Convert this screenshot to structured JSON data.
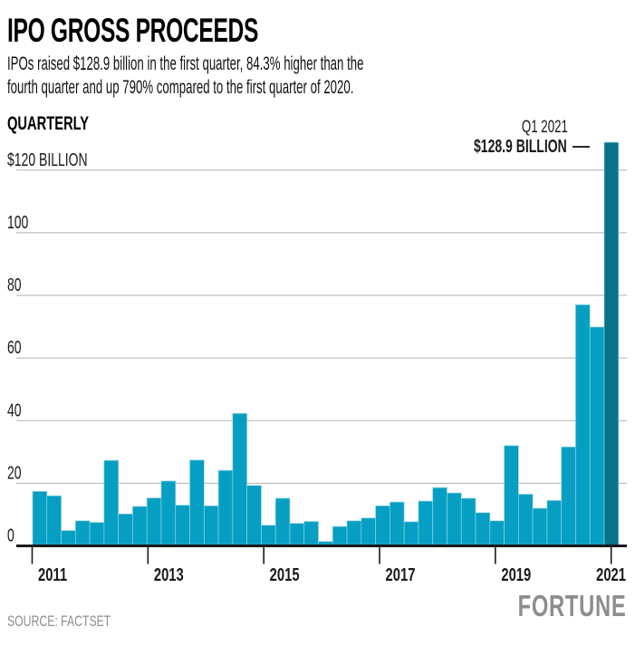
{
  "header": {
    "title": "IPO GROSS PROCEEDS",
    "subtitle_line1": "IPOs raised $128.9 billion in the first quarter, 84.3% higher than the",
    "subtitle_line2": "fourth quarter and up 790% compared to the first quarter of 2020."
  },
  "chart_header": {
    "frequency_label": "QUARTERLY"
  },
  "annotation": {
    "line1": "Q1 2021",
    "line2": "$128.9 BILLION"
  },
  "footer": {
    "source": "SOURCE: FACTSET",
    "brand": "FORTUNE"
  },
  "colors": {
    "bar": "#069fc3",
    "bar_highlight": "#0a7189",
    "bar_edge": "#8fd2e0",
    "gridline": "#b1b1b1",
    "axis": "#1a1a1a",
    "text": "#1a1a1a",
    "muted": "#8d8d8d"
  },
  "chart_data": {
    "type": "bar",
    "title": "IPO GROSS PROCEEDS",
    "subtitle": "IPOs raised $128.9 billion in the first quarter, 84.3% higher than the fourth quarter and up 790% compared to the first quarter of 2020.",
    "frequency": "QUARTERLY",
    "unit": "billions of US dollars",
    "grid": true,
    "legend": false,
    "source": "FACTSET",
    "x": [
      "Q1 2011",
      "Q2 2011",
      "Q3 2011",
      "Q4 2011",
      "Q1 2012",
      "Q2 2012",
      "Q3 2012",
      "Q4 2012",
      "Q1 2013",
      "Q2 2013",
      "Q3 2013",
      "Q4 2013",
      "Q1 2014",
      "Q2 2014",
      "Q3 2014",
      "Q4 2014",
      "Q1 2015",
      "Q2 2015",
      "Q3 2015",
      "Q4 2015",
      "Q1 2016",
      "Q2 2016",
      "Q3 2016",
      "Q4 2016",
      "Q1 2017",
      "Q2 2017",
      "Q3 2017",
      "Q4 2017",
      "Q1 2018",
      "Q2 2018",
      "Q3 2018",
      "Q4 2018",
      "Q1 2019",
      "Q2 2019",
      "Q3 2019",
      "Q4 2019",
      "Q1 2020",
      "Q2 2020",
      "Q3 2020",
      "Q4 2020",
      "Q1 2021"
    ],
    "values": [
      17.4,
      16.0,
      4.9,
      8.0,
      7.5,
      27.3,
      10.2,
      12.6,
      15.3,
      20.7,
      13.0,
      27.4,
      12.8,
      24.1,
      42.3,
      19.3,
      6.6,
      15.2,
      7.2,
      7.8,
      1.4,
      6.2,
      8.0,
      8.9,
      12.8,
      14.0,
      7.7,
      14.3,
      18.6,
      16.9,
      15.2,
      10.6,
      8.0,
      32.0,
      16.5,
      12.0,
      14.5,
      31.6,
      77.0,
      69.9,
      128.9
    ],
    "highlight_index": 40,
    "annotation": {
      "label": "Q1 2021",
      "value_label": "$128.9 BILLION",
      "value": 128.9
    },
    "y_axis": {
      "ticks": [
        0,
        20,
        40,
        60,
        80,
        100,
        120
      ],
      "tick_labels": [
        "0",
        "20",
        "40",
        "60",
        "80",
        "100",
        "$120 BILLION"
      ],
      "max": 130
    },
    "x_axis": {
      "tick_labels": [
        "2011",
        "2013",
        "2015",
        "2017",
        "2019",
        "2021"
      ]
    }
  }
}
